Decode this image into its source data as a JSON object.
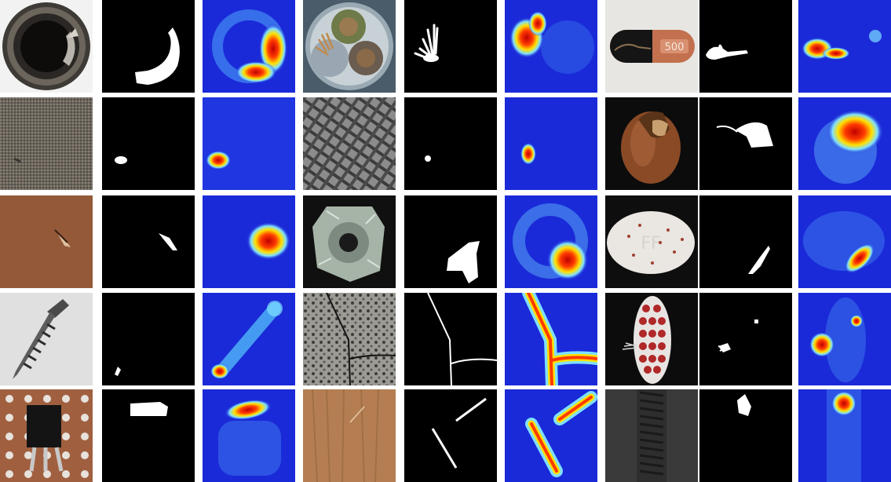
{
  "figure": {
    "rows": 5,
    "groups_per_row": 3,
    "column_roles": [
      "input-image",
      "ground-truth-mask",
      "anomaly-heatmap"
    ]
  },
  "colors": {
    "background": "#ffffff",
    "mask_bg": "#000000",
    "mask_fg": "#ffffff",
    "heat_low": "#1a2ad8",
    "heat_mid": "#7fe0ff",
    "heat_high_1": "#ffe000",
    "heat_high_2": "#ff3b00",
    "heat_peak": "#c00000"
  },
  "samples": [
    {
      "row": 0,
      "group": 0,
      "object": "bottle",
      "defect": "broken-large"
    },
    {
      "row": 0,
      "group": 1,
      "object": "cable",
      "defect": "poke-insulation"
    },
    {
      "row": 0,
      "group": 2,
      "object": "capsule",
      "defect": "faulty-imprint"
    },
    {
      "row": 1,
      "group": 0,
      "object": "carpet",
      "defect": "hole"
    },
    {
      "row": 1,
      "group": 1,
      "object": "grid",
      "defect": "broken"
    },
    {
      "row": 1,
      "group": 2,
      "object": "hazelnut",
      "defect": "crack"
    },
    {
      "row": 2,
      "group": 0,
      "object": "leather",
      "defect": "cut"
    },
    {
      "row": 2,
      "group": 1,
      "object": "metal-nut",
      "defect": "bent"
    },
    {
      "row": 2,
      "group": 2,
      "object": "pill",
      "defect": "crack"
    },
    {
      "row": 3,
      "group": 0,
      "object": "screw",
      "defect": "thread-tip"
    },
    {
      "row": 3,
      "group": 1,
      "object": "tile",
      "defect": "crack"
    },
    {
      "row": 3,
      "group": 2,
      "object": "toothbrush",
      "defect": "defective"
    },
    {
      "row": 4,
      "group": 0,
      "object": "transistor",
      "defect": "misplaced"
    },
    {
      "row": 4,
      "group": 1,
      "object": "wood",
      "defect": "scratch"
    },
    {
      "row": 4,
      "group": 2,
      "object": "zipper",
      "defect": "broken-teeth"
    }
  ]
}
